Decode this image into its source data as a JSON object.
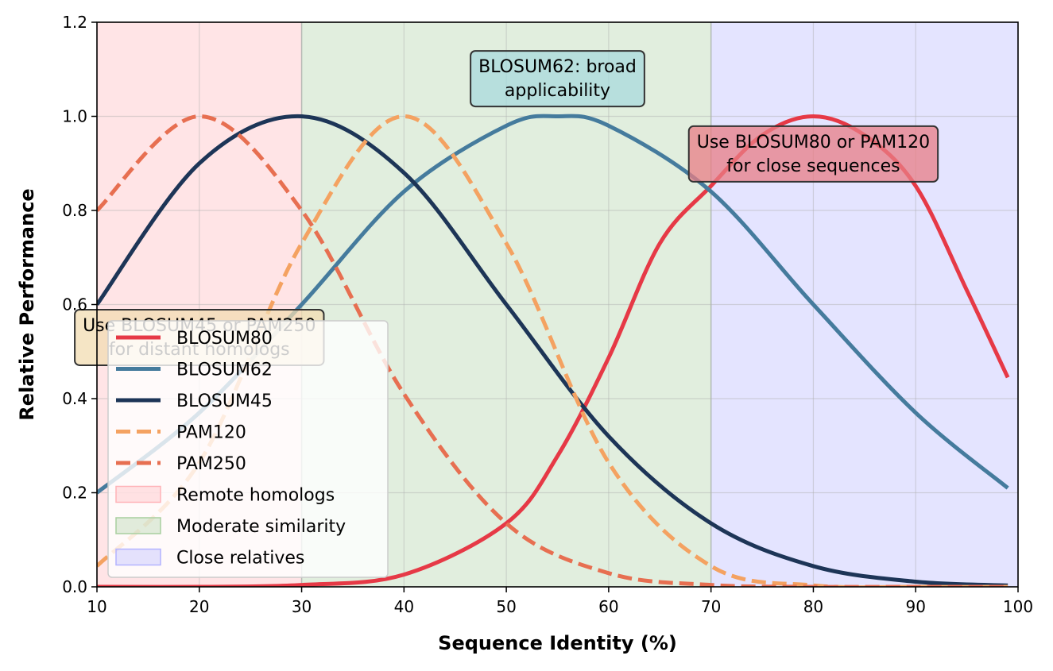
{
  "chart_data": {
    "type": "line",
    "title": "",
    "xlabel": "Sequence Identity (%)",
    "ylabel": "Relative Performance",
    "xlim": [
      10,
      100
    ],
    "ylim": [
      0,
      1.2
    ],
    "xticks": [
      "10",
      "20",
      "30",
      "40",
      "50",
      "60",
      "70",
      "80",
      "90",
      "100"
    ],
    "yticks": [
      "0.0",
      "0.2",
      "0.4",
      "0.6",
      "0.8",
      "1.0",
      "1.2"
    ],
    "grid": true,
    "legend_position": "lower-left",
    "series": [
      {
        "name": "BLOSUM80",
        "color": "#e63946",
        "style": "solid",
        "x": [
          10,
          20,
          30,
          40,
          50,
          55,
          60,
          65,
          70,
          75,
          80,
          85,
          90,
          95,
          99
        ],
        "values": [
          0.0,
          0.0,
          0.004,
          0.026,
          0.135,
          0.278,
          0.487,
          0.73,
          0.852,
          0.96,
          1.0,
          0.96,
          0.852,
          0.63,
          0.445
        ]
      },
      {
        "name": "BLOSUM62",
        "color": "#457b9d",
        "style": "solid",
        "x": [
          10,
          20,
          30,
          40,
          50,
          55,
          60,
          70,
          80,
          90,
          99
        ],
        "values": [
          0.2,
          0.37,
          0.6,
          0.84,
          0.98,
          1.0,
          0.98,
          0.84,
          0.6,
          0.37,
          0.21
        ]
      },
      {
        "name": "BLOSUM45",
        "color": "#1d3557",
        "style": "solid",
        "x": [
          10,
          20,
          30,
          40,
          50,
          60,
          70,
          80,
          90,
          99
        ],
        "values": [
          0.6,
          0.9,
          1.0,
          0.88,
          0.6,
          0.32,
          0.135,
          0.044,
          0.011,
          0.003
        ]
      },
      {
        "name": "PAM120",
        "color": "#f4a261",
        "style": "dashed",
        "x": [
          10,
          20,
          30,
          40,
          50,
          60,
          70,
          80,
          90,
          99
        ],
        "values": [
          0.044,
          0.264,
          0.73,
          1.0,
          0.73,
          0.264,
          0.044,
          0.003,
          0.0,
          0.0
        ]
      },
      {
        "name": "PAM250",
        "color": "#e76f51",
        "style": "dashed",
        "x": [
          10,
          20,
          30,
          40,
          50,
          60,
          70,
          80,
          90,
          99
        ],
        "values": [
          0.8,
          1.0,
          0.8,
          0.41,
          0.135,
          0.029,
          0.004,
          0.0,
          0.0,
          0.0
        ]
      }
    ],
    "regions": [
      {
        "name": "Remote homologs",
        "x_start": 10,
        "x_end": 30,
        "color": "#ffb3b8"
      },
      {
        "name": "Moderate similarity",
        "x_start": 30,
        "x_end": 70,
        "color": "#a8cfa0"
      },
      {
        "name": "Close relatives",
        "x_start": 70,
        "x_end": 100,
        "color": "#b3b3ff"
      }
    ],
    "annotations": [
      {
        "lines": [
          "BLOSUM62: broad",
          "applicability"
        ],
        "x": 55,
        "y": 1.08,
        "bg": "#a8dadc"
      },
      {
        "lines": [
          "Use BLOSUM80 or PAM120",
          "for close sequences"
        ],
        "x": 80,
        "y": 0.92,
        "bg": "#e87e86"
      },
      {
        "lines": [
          "Use BLOSUM45 or PAM250",
          "for distant homologs"
        ],
        "x": 20,
        "y": 0.53,
        "bg": "#f1dcb2"
      }
    ]
  }
}
